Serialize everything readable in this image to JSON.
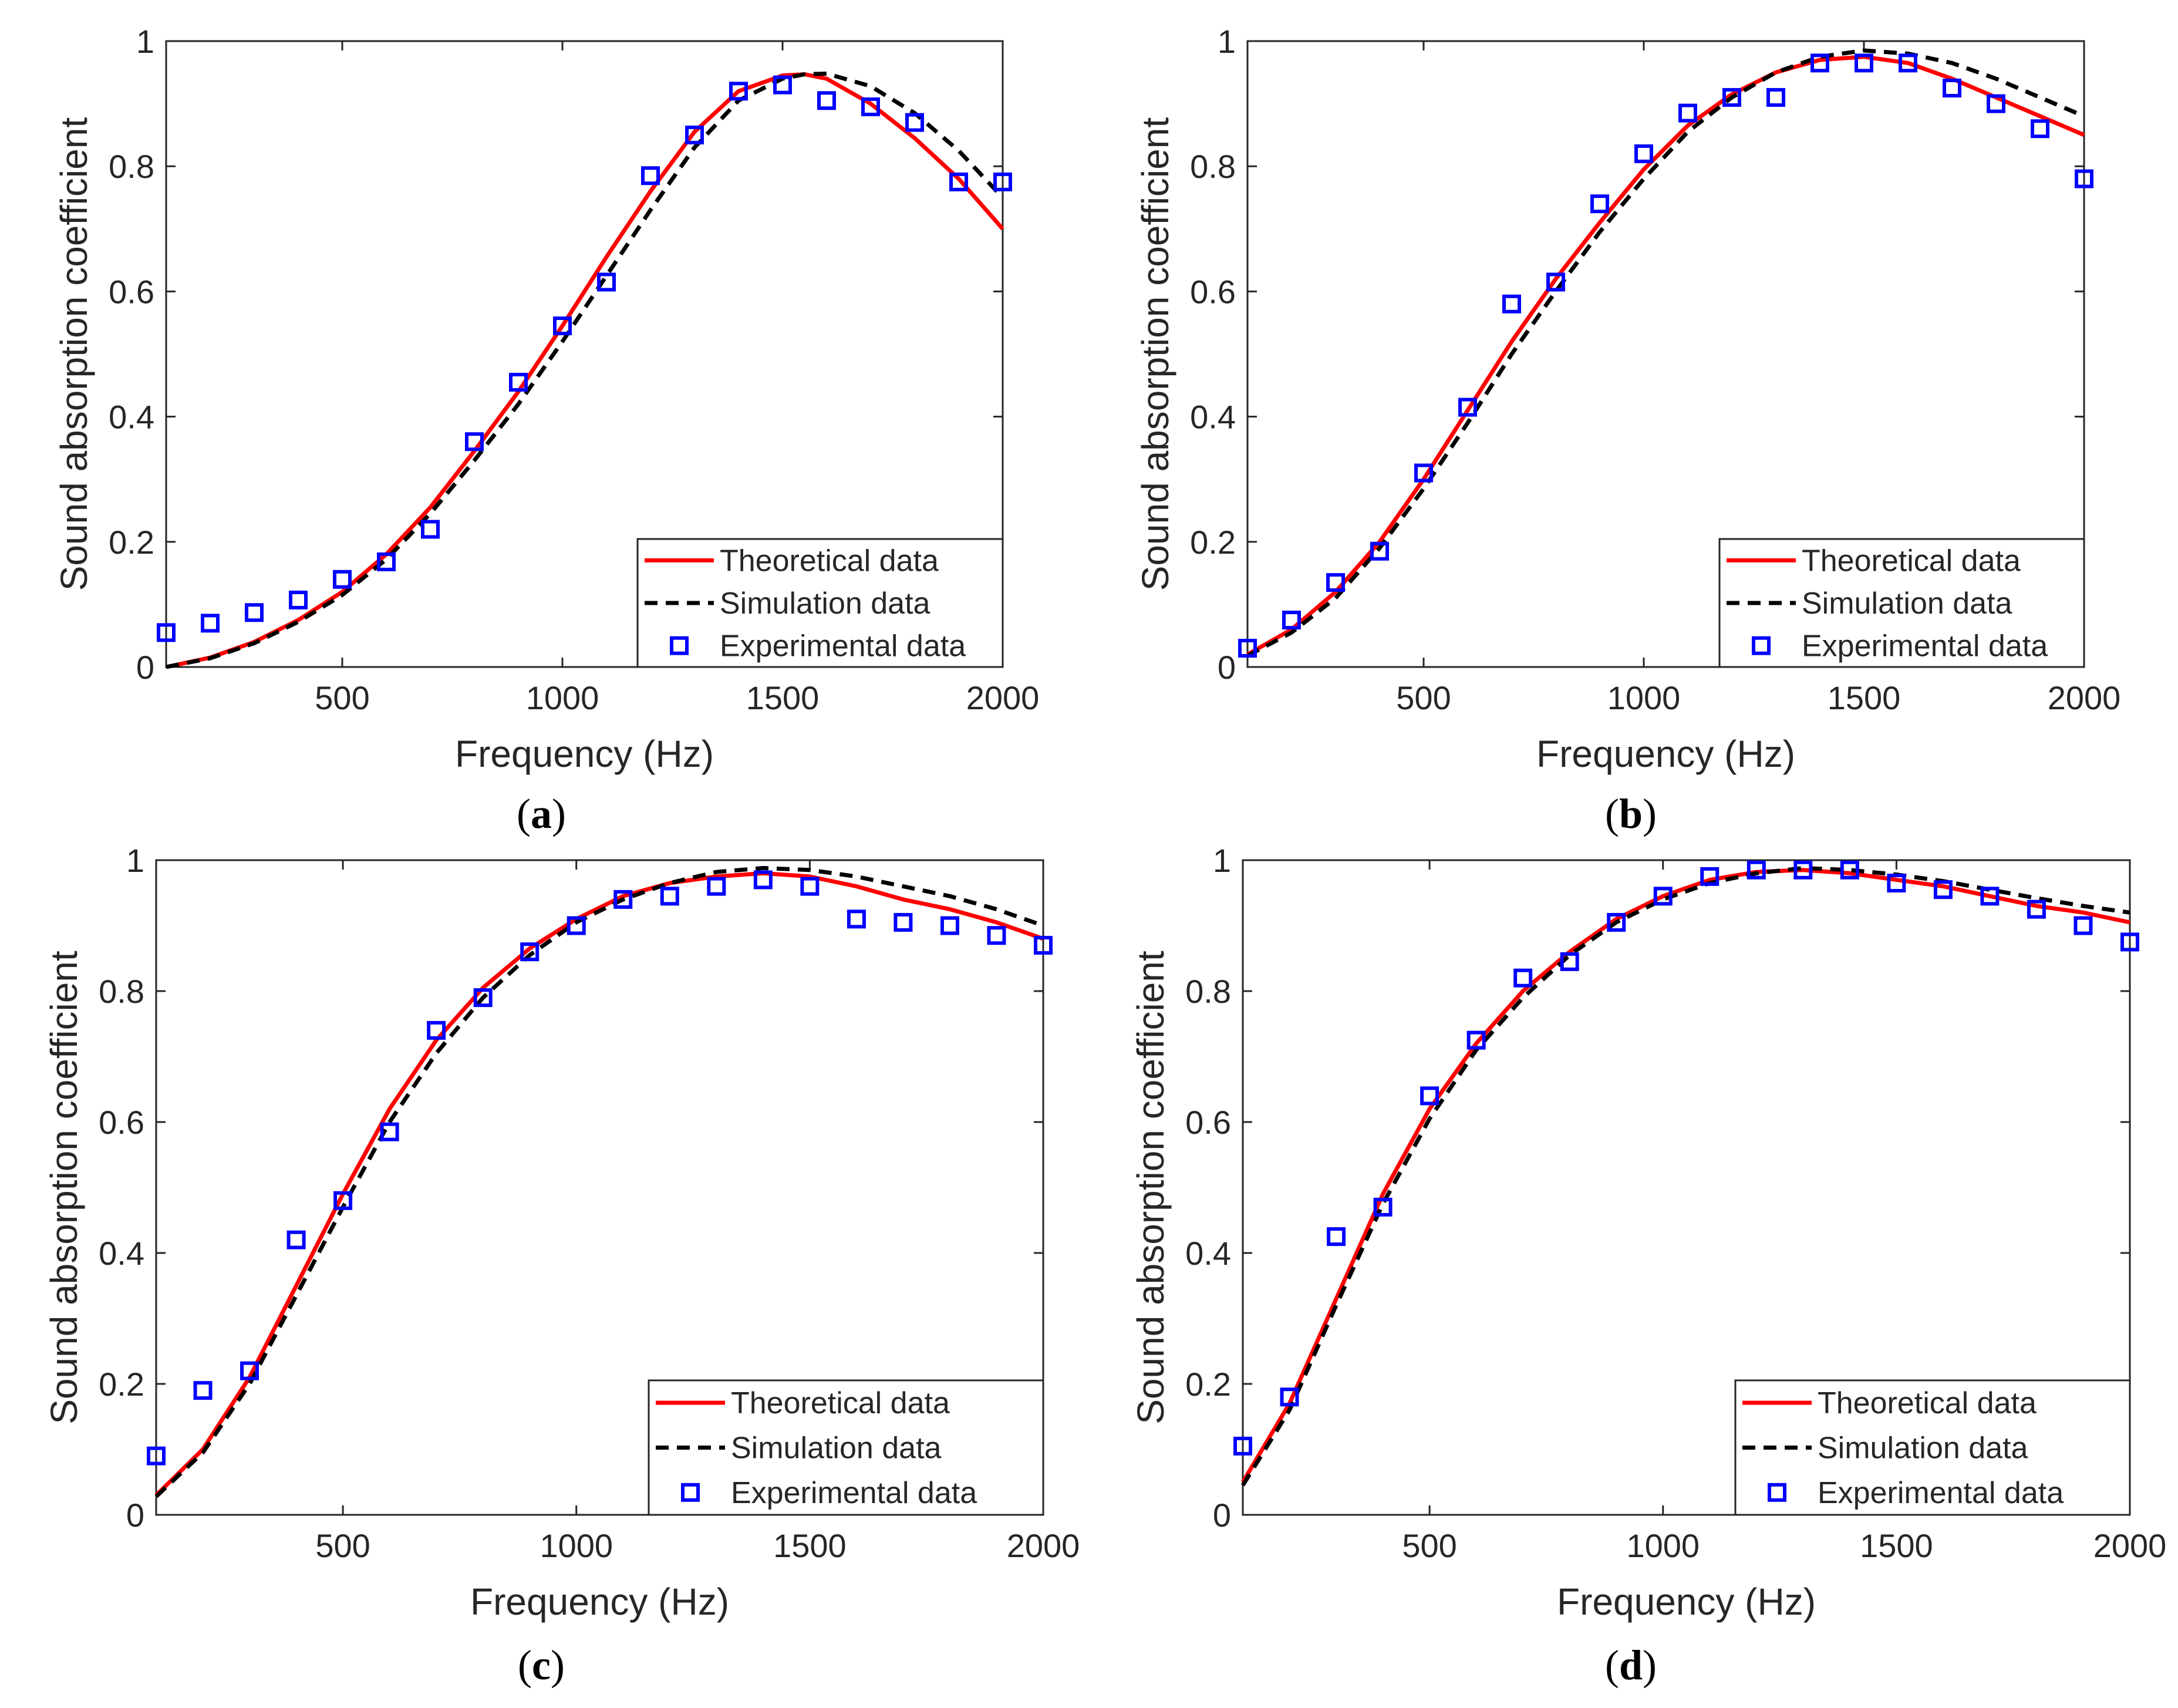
{
  "chart_data": [
    {
      "panel": "a",
      "caption": "a",
      "type": "line",
      "xlabel": "Frequency (Hz)",
      "ylabel": "Sound absorption coefficient",
      "xlim": [
        100,
        2000
      ],
      "ylim": [
        0,
        1
      ],
      "xticks": [
        500,
        1000,
        1500,
        2000
      ],
      "yticks": [
        0,
        0.2,
        0.4,
        0.6,
        0.8,
        1
      ],
      "ytick_labels": [
        "0",
        "0.2",
        "0.4",
        "0.6",
        "0.8",
        "1"
      ],
      "series": [
        {
          "name": "Theoretical data",
          "style": "solid",
          "color": "#ff0000",
          "x": [
            100,
            200,
            300,
            400,
            500,
            600,
            700,
            800,
            900,
            1000,
            1100,
            1200,
            1300,
            1400,
            1500,
            1550,
            1600,
            1700,
            1800,
            1900,
            2000
          ],
          "y": [
            0.0,
            0.015,
            0.04,
            0.075,
            0.12,
            0.18,
            0.255,
            0.345,
            0.44,
            0.545,
            0.655,
            0.76,
            0.855,
            0.92,
            0.945,
            0.947,
            0.94,
            0.9,
            0.845,
            0.78,
            0.7
          ]
        },
        {
          "name": "Simulation data",
          "style": "dashed",
          "color": "#000000",
          "x": [
            100,
            200,
            300,
            400,
            500,
            600,
            700,
            800,
            900,
            1000,
            1100,
            1200,
            1300,
            1400,
            1500,
            1550,
            1600,
            1700,
            1800,
            1900,
            2000
          ],
          "y": [
            0.0,
            0.014,
            0.038,
            0.072,
            0.115,
            0.172,
            0.245,
            0.33,
            0.42,
            0.52,
            0.625,
            0.73,
            0.83,
            0.905,
            0.94,
            0.947,
            0.948,
            0.928,
            0.885,
            0.825,
            0.75
          ]
        },
        {
          "name": "Experimental data",
          "style": "marker",
          "color": "#0000ff",
          "x": [
            100,
            200,
            300,
            400,
            500,
            600,
            700,
            800,
            900,
            1000,
            1100,
            1200,
            1300,
            1400,
            1500,
            1600,
            1700,
            1800,
            1900,
            2000
          ],
          "y": [
            0.055,
            0.07,
            0.087,
            0.107,
            0.14,
            0.168,
            0.22,
            0.36,
            0.455,
            0.545,
            0.615,
            0.785,
            0.85,
            0.92,
            0.93,
            0.905,
            0.895,
            0.87,
            0.775,
            0.775
          ]
        }
      ]
    },
    {
      "panel": "b",
      "caption": "b",
      "type": "line",
      "xlabel": "Frequency (Hz)",
      "ylabel": "Sound absorption coefficient",
      "xlim": [
        100,
        2000
      ],
      "ylim": [
        0,
        1
      ],
      "xticks": [
        500,
        1000,
        1500,
        2000
      ],
      "yticks": [
        0,
        0.2,
        0.4,
        0.6,
        0.8,
        1
      ],
      "ytick_labels": [
        "0",
        "0.2",
        "0.4",
        "0.6",
        "0.8",
        "1"
      ],
      "series": [
        {
          "name": "Theoretical data",
          "style": "solid",
          "color": "#ff0000",
          "x": [
            100,
            200,
            300,
            400,
            500,
            600,
            700,
            800,
            900,
            1000,
            1100,
            1200,
            1300,
            1400,
            1500,
            1600,
            1700,
            1800,
            1900,
            2000
          ],
          "y": [
            0.02,
            0.06,
            0.12,
            0.2,
            0.3,
            0.41,
            0.52,
            0.62,
            0.71,
            0.795,
            0.865,
            0.915,
            0.95,
            0.97,
            0.975,
            0.965,
            0.94,
            0.91,
            0.88,
            0.85
          ]
        },
        {
          "name": "Simulation data",
          "style": "dashed",
          "color": "#000000",
          "x": [
            100,
            200,
            300,
            400,
            500,
            600,
            700,
            800,
            900,
            1000,
            1100,
            1200,
            1300,
            1400,
            1500,
            1600,
            1700,
            1800,
            1900,
            2000
          ],
          "y": [
            0.018,
            0.055,
            0.11,
            0.19,
            0.285,
            0.39,
            0.5,
            0.6,
            0.695,
            0.78,
            0.855,
            0.91,
            0.95,
            0.975,
            0.985,
            0.98,
            0.965,
            0.94,
            0.91,
            0.88
          ]
        },
        {
          "name": "Experimental data",
          "style": "marker",
          "color": "#0000ff",
          "x": [
            100,
            200,
            300,
            400,
            500,
            600,
            700,
            800,
            900,
            1000,
            1100,
            1200,
            1300,
            1400,
            1500,
            1600,
            1700,
            1800,
            1900,
            2000
          ],
          "y": [
            0.03,
            0.075,
            0.135,
            0.185,
            0.31,
            0.415,
            0.58,
            0.615,
            0.74,
            0.82,
            0.885,
            0.91,
            0.91,
            0.965,
            0.965,
            0.965,
            0.925,
            0.9,
            0.86,
            0.78
          ]
        }
      ]
    },
    {
      "panel": "c",
      "caption": "c",
      "type": "line",
      "xlabel": "Frequency (Hz)",
      "ylabel": "Sound absorption coefficient",
      "xlim": [
        100,
        2000
      ],
      "ylim": [
        0,
        1
      ],
      "xticks": [
        500,
        1000,
        1500,
        2000
      ],
      "yticks": [
        0,
        0.2,
        0.4,
        0.6,
        0.8,
        1
      ],
      "ytick_labels": [
        "0",
        "0.2",
        "0.4",
        "0.6",
        "0.8",
        "1"
      ],
      "series": [
        {
          "name": "Theoretical data",
          "style": "solid",
          "color": "#ff0000",
          "x": [
            100,
            200,
            300,
            400,
            500,
            600,
            700,
            800,
            900,
            1000,
            1100,
            1200,
            1300,
            1400,
            1500,
            1600,
            1700,
            1800,
            1900,
            2000
          ],
          "y": [
            0.03,
            0.1,
            0.21,
            0.35,
            0.49,
            0.62,
            0.725,
            0.805,
            0.865,
            0.91,
            0.945,
            0.965,
            0.975,
            0.98,
            0.975,
            0.96,
            0.94,
            0.925,
            0.905,
            0.88
          ]
        },
        {
          "name": "Simulation data",
          "style": "dashed",
          "color": "#000000",
          "x": [
            100,
            200,
            300,
            400,
            500,
            600,
            700,
            800,
            900,
            1000,
            1100,
            1200,
            1300,
            1400,
            1500,
            1600,
            1700,
            1800,
            1900,
            2000
          ],
          "y": [
            0.028,
            0.095,
            0.2,
            0.335,
            0.47,
            0.6,
            0.705,
            0.79,
            0.855,
            0.905,
            0.94,
            0.965,
            0.982,
            0.988,
            0.985,
            0.975,
            0.96,
            0.945,
            0.925,
            0.9
          ]
        },
        {
          "name": "Experimental data",
          "style": "marker",
          "color": "#0000ff",
          "x": [
            100,
            200,
            300,
            400,
            500,
            600,
            700,
            800,
            900,
            1000,
            1100,
            1200,
            1300,
            1400,
            1500,
            1600,
            1700,
            1800,
            1900,
            2000
          ],
          "y": [
            0.09,
            0.19,
            0.22,
            0.42,
            0.48,
            0.585,
            0.74,
            0.79,
            0.86,
            0.9,
            0.94,
            0.945,
            0.96,
            0.97,
            0.96,
            0.91,
            0.905,
            0.9,
            0.885,
            0.87
          ]
        }
      ]
    },
    {
      "panel": "d",
      "caption": "d",
      "type": "line",
      "xlabel": "Frequency (Hz)",
      "ylabel": "Sound absorption coefficient",
      "xlim": [
        100,
        2000
      ],
      "ylim": [
        0,
        1
      ],
      "xticks": [
        500,
        1000,
        1500,
        2000
      ],
      "yticks": [
        0,
        0.2,
        0.4,
        0.6,
        0.8,
        1
      ],
      "ytick_labels": [
        "0",
        "0.2",
        "0.4",
        "0.6",
        "0.8",
        "1"
      ],
      "series": [
        {
          "name": "Theoretical data",
          "style": "solid",
          "color": "#ff0000",
          "x": [
            100,
            200,
            300,
            400,
            500,
            600,
            700,
            800,
            900,
            1000,
            1100,
            1200,
            1300,
            1400,
            1500,
            1600,
            1700,
            1800,
            1900,
            2000
          ],
          "y": [
            0.05,
            0.17,
            0.33,
            0.49,
            0.62,
            0.72,
            0.8,
            0.86,
            0.91,
            0.945,
            0.97,
            0.982,
            0.985,
            0.98,
            0.97,
            0.96,
            0.945,
            0.93,
            0.92,
            0.905
          ]
        },
        {
          "name": "Simulation data",
          "style": "dashed",
          "color": "#000000",
          "x": [
            100,
            200,
            300,
            400,
            500,
            600,
            700,
            800,
            900,
            1000,
            1100,
            1200,
            1300,
            1400,
            1500,
            1600,
            1700,
            1800,
            1900,
            2000
          ],
          "y": [
            0.045,
            0.16,
            0.32,
            0.475,
            0.605,
            0.71,
            0.79,
            0.855,
            0.905,
            0.94,
            0.965,
            0.98,
            0.988,
            0.985,
            0.978,
            0.968,
            0.955,
            0.942,
            0.93,
            0.92
          ]
        },
        {
          "name": "Experimental data",
          "style": "marker",
          "color": "#0000ff",
          "x": [
            100,
            200,
            300,
            400,
            500,
            600,
            700,
            800,
            900,
            1000,
            1100,
            1200,
            1300,
            1400,
            1500,
            1600,
            1700,
            1800,
            1900,
            2000
          ],
          "y": [
            0.105,
            0.18,
            0.425,
            0.47,
            0.64,
            0.725,
            0.82,
            0.845,
            0.905,
            0.945,
            0.975,
            0.985,
            0.985,
            0.985,
            0.965,
            0.955,
            0.945,
            0.925,
            0.9,
            0.875
          ]
        }
      ]
    }
  ]
}
